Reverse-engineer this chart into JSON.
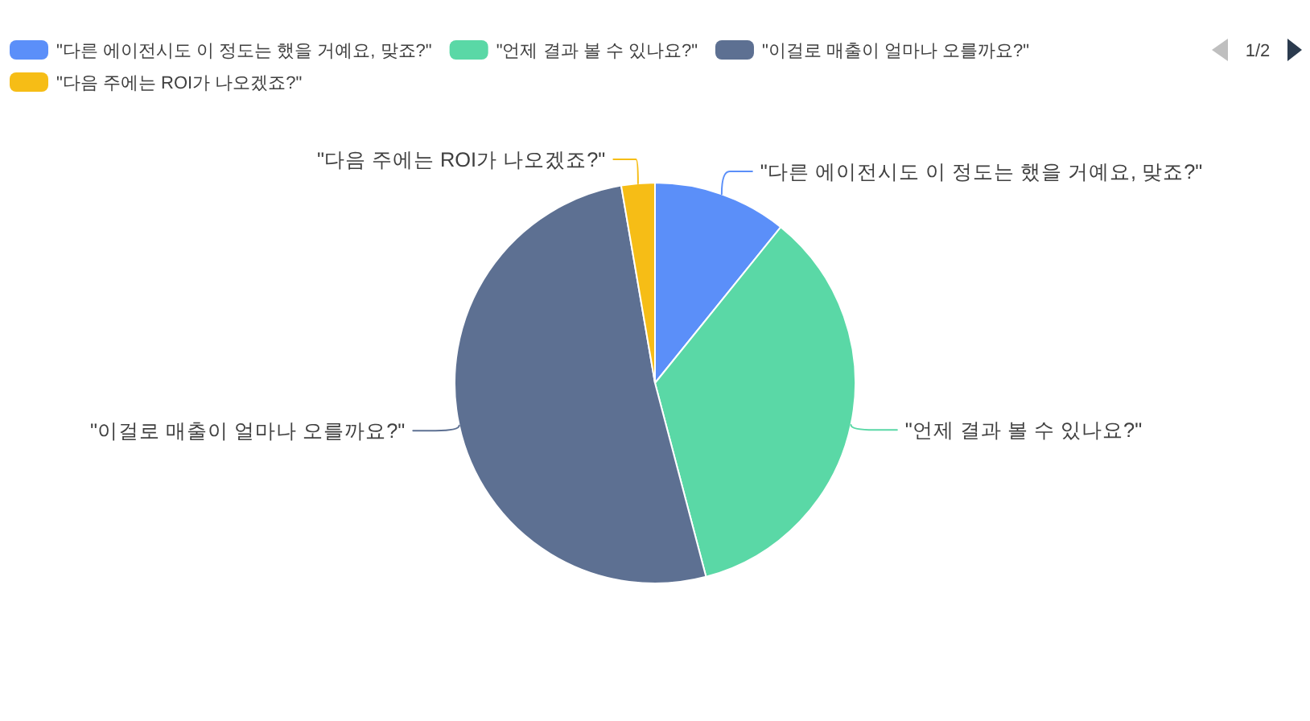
{
  "chart_data": {
    "type": "pie",
    "categories": [
      "\"다른 에이전시도 이 정도는 했을 거예요, 맞죠?\"",
      "\"언제 결과 볼 수 있나요?\"",
      "\"이걸로 매출이 얼마나 오를까요?\"",
      "\"다음 주에는 ROI가 나오겠죠?\""
    ],
    "values": [
      10.8,
      35.1,
      51.4,
      2.7
    ],
    "colors": [
      "#5b8ff9",
      "#5ad8a6",
      "#5d7092",
      "#f6bd16"
    ],
    "legend": "top left",
    "annotations": [
      "1/2"
    ]
  }
}
